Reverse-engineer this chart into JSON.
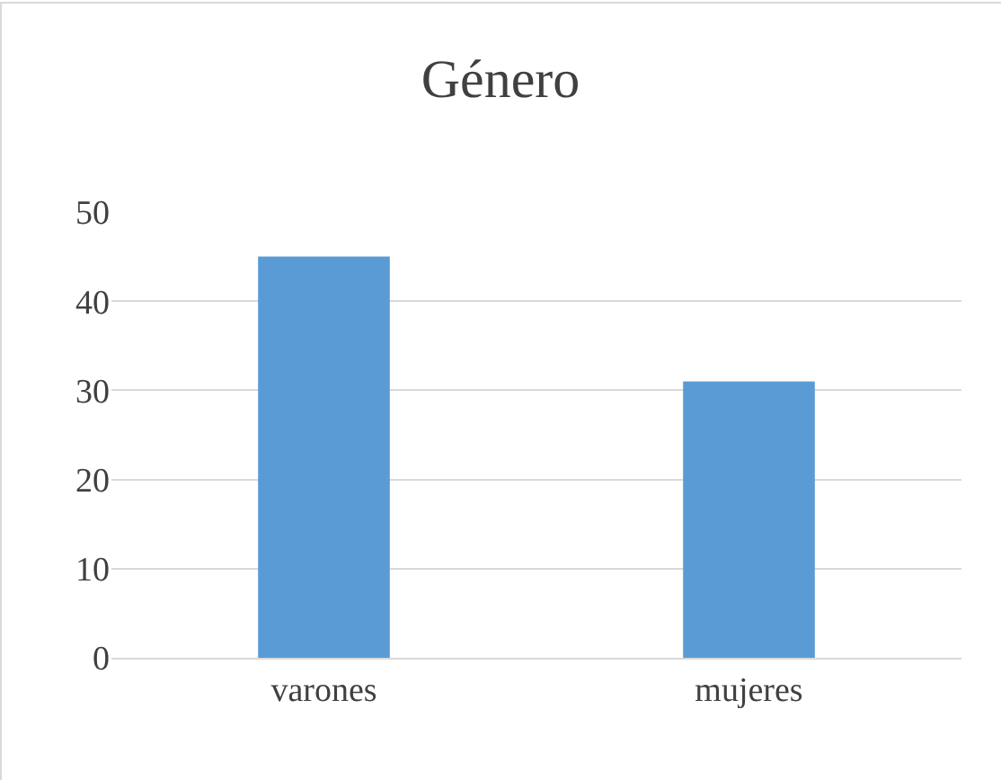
{
  "chart_data": {
    "type": "bar",
    "title": "Género",
    "categories": [
      "varones",
      "mujeres"
    ],
    "values": [
      45,
      31
    ],
    "color": "#5b9bd5",
    "ylim": [
      0,
      50
    ],
    "yticks": [
      0,
      10,
      20,
      30,
      40,
      50
    ],
    "grid": "y",
    "legend": false
  }
}
